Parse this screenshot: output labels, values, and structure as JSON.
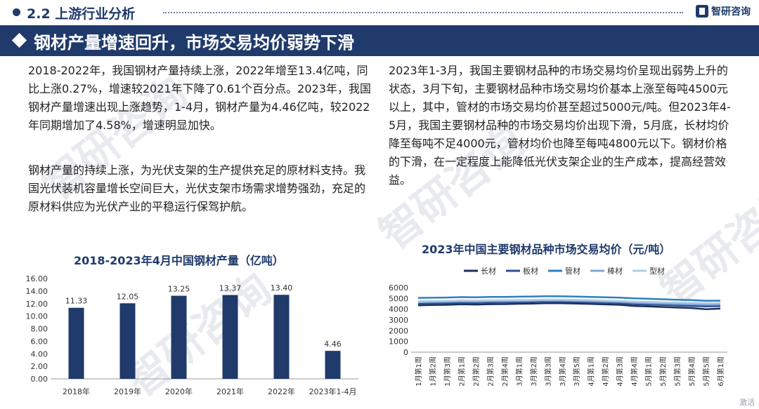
{
  "header": {
    "section_title": "2.2 上游行业分析",
    "brand": "智研咨询"
  },
  "banner": {
    "title": "钢材产量增速回升，市场交易均价弱势下滑"
  },
  "text": {
    "left_p1": "2018-2022年，我国钢材产量持续上涨，2022年增至13.4亿吨，同比上涨0.27%，增速较2021年下降了0.61个百分点。2023年，我国钢材产量增速出现上涨趋势，1-4月，钢材产量为4.46亿吨，较2022年同期增加了4.58%，增速明显加快。",
    "left_p2": "钢材产量的持续上涨，为光伏支架的生产提供充足的原材料支持。我国光伏装机容量增长空间巨大，光伏支架市场需求增势强劲，充足的原材料供应为光伏产业的平稳运行保驾护航。",
    "right_p1": "2023年1-3月，我国主要钢材品种的市场交易均价呈现出弱势上升的状态，3月下旬，主要钢材品种市场交易均价基本上涨至每吨4500元以上，其中，管材的市场交易均价甚至超过5000元/吨。但2023年4-5月，我国主要钢材品种的市场交易均价出现下滑，5月底，长材均价降至每吨不足4000元，管材均价也降至每吨4800元以下。钢材价格的下滑，在一定程度上能降低光伏支架企业的生产成本，提高经营效益。"
  },
  "watermark": "智研咨询",
  "corner_text": "激活",
  "chart_data": [
    {
      "type": "bar",
      "title": "2018-2023年4月中国钢材产量（亿吨）",
      "categories": [
        "2018年",
        "2019年",
        "2020年",
        "2021年",
        "2022年",
        "2023年1-4月"
      ],
      "values": [
        11.33,
        12.05,
        13.25,
        13.37,
        13.4,
        4.46
      ],
      "value_labels": [
        "11.33",
        "12.05",
        "13.25",
        "13.37",
        "13.40",
        "4.46"
      ],
      "yticks": [
        "0.00",
        "2.00",
        "4.00",
        "6.00",
        "8.00",
        "10.00",
        "12.00",
        "14.00",
        "16.00"
      ],
      "ylim": [
        0,
        16
      ],
      "color": "#1f3a6b"
    },
    {
      "type": "line",
      "title": "2023年中国主要钢材品种市场交易均价（元/吨）",
      "legend_position": "top",
      "x": [
        "1月第1周",
        "1月第2周",
        "1月第3周",
        "2月第1周",
        "2月第2周",
        "2月第3周",
        "2月第4周",
        "3月第1周",
        "3月第2周",
        "3月第3周",
        "3月第4周",
        "3月第5周",
        "4月第1周",
        "4月第2周",
        "4月第3周",
        "4月第4周",
        "5月第1周",
        "5月第2周",
        "5月第3周",
        "5月第4周",
        "5月第5周",
        "6月第1周"
      ],
      "yticks": [
        "0",
        "1000",
        "2000",
        "3000",
        "4000",
        "5000",
        "6000"
      ],
      "ylim": [
        0,
        6000
      ],
      "series": [
        {
          "name": "长材",
          "color": "#1b2f5c",
          "values": [
            4350,
            4380,
            4400,
            4450,
            4430,
            4460,
            4470,
            4500,
            4520,
            4560,
            4550,
            4520,
            4480,
            4440,
            4400,
            4300,
            4250,
            4200,
            4150,
            4100,
            4000,
            4050
          ]
        },
        {
          "name": "板材",
          "color": "#2f4f8f",
          "values": [
            4500,
            4520,
            4550,
            4600,
            4580,
            4620,
            4630,
            4650,
            4680,
            4700,
            4690,
            4660,
            4620,
            4580,
            4540,
            4460,
            4420,
            4380,
            4340,
            4300,
            4250,
            4280
          ]
        },
        {
          "name": "管材",
          "color": "#2d7fc0",
          "values": [
            5050,
            5060,
            5080,
            5120,
            5100,
            5130,
            5140,
            5160,
            5180,
            5200,
            5190,
            5170,
            5140,
            5100,
            5070,
            5000,
            4960,
            4920,
            4880,
            4840,
            4780,
            4790
          ]
        },
        {
          "name": "棒材",
          "color": "#7fa8d8",
          "values": [
            4650,
            4670,
            4690,
            4730,
            4710,
            4740,
            4750,
            4770,
            4790,
            4810,
            4800,
            4780,
            4740,
            4700,
            4670,
            4600,
            4560,
            4520,
            4490,
            4460,
            4420,
            4440
          ]
        },
        {
          "name": "型材",
          "color": "#b3cde8",
          "values": [
            4750,
            4760,
            4780,
            4820,
            4800,
            4830,
            4840,
            4860,
            4880,
            4900,
            4890,
            4870,
            4840,
            4800,
            4770,
            4710,
            4680,
            4650,
            4620,
            4590,
            4560,
            4570
          ]
        }
      ]
    }
  ]
}
